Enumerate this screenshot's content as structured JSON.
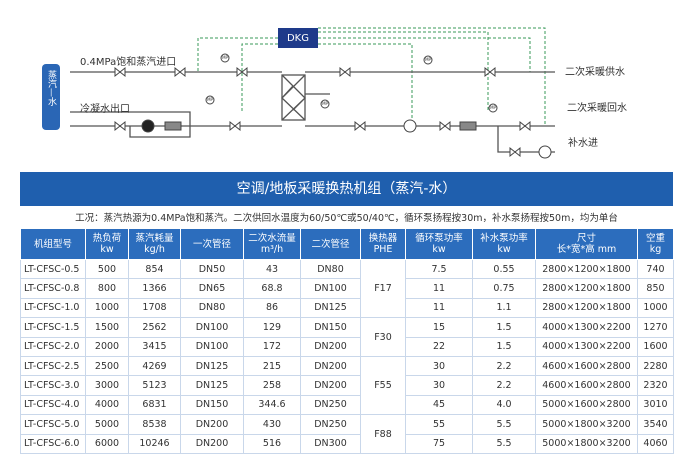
{
  "diagram": {
    "controller": "DKG",
    "steam_inlet": "0.4MPa饱和蒸汽进口",
    "condensate_outlet": "冷凝水出口",
    "side_label": "蒸汽—水",
    "supply": "二次采暖供水",
    "return": "二次采暖回水",
    "makeup": "补水进",
    "gauge_label": "MP"
  },
  "header": {
    "title": "空调/地板采暖换热机组（蒸汽-水）",
    "note": "工况：蒸汽热源为0.4MPa饱和蒸汽。二次供回水温度为60/50℃或50/40℃，循环泵扬程按30m，补水泵扬程按50m，均为单台"
  },
  "table": {
    "columns": [
      [
        "机组型号"
      ],
      [
        "热负荷",
        "kw"
      ],
      [
        "蒸汽耗量",
        "kg/h"
      ],
      [
        "一次管径"
      ],
      [
        "二次水流量",
        "m³/h"
      ],
      [
        "二次管径"
      ],
      [
        "换热器",
        "PHE"
      ],
      [
        "循环泵功率",
        "kw"
      ],
      [
        "补水泵功率",
        "kw"
      ],
      [
        "尺寸",
        "长*宽*高 mm"
      ],
      [
        "空重",
        "kg"
      ]
    ],
    "rows": [
      [
        "LT-CFSC-0.5",
        "500",
        "854",
        "DN50",
        "43",
        "DN80",
        "7.5",
        "0.55",
        "2800×1200×1800",
        "740"
      ],
      [
        "LT-CFSC-0.8",
        "800",
        "1366",
        "DN65",
        "68.8",
        "DN100",
        "11",
        "0.75",
        "2800×1200×1800",
        "850"
      ],
      [
        "LT-CFSC-1.0",
        "1000",
        "1708",
        "DN80",
        "86",
        "DN125",
        "11",
        "1.1",
        "2800×1200×1800",
        "1000"
      ],
      [
        "LT-CFSC-1.5",
        "1500",
        "2562",
        "DN100",
        "129",
        "DN150",
        "15",
        "1.5",
        "4000×1300×2200",
        "1270"
      ],
      [
        "LT-CFSC-2.0",
        "2000",
        "3415",
        "DN100",
        "172",
        "DN200",
        "22",
        "1.5",
        "4000×1300×2200",
        "1600"
      ],
      [
        "LT-CFSC-2.5",
        "2500",
        "4269",
        "DN125",
        "215",
        "DN200",
        "30",
        "2.2",
        "4600×1600×2800",
        "2280"
      ],
      [
        "LT-CFSC-3.0",
        "3000",
        "5123",
        "DN125",
        "258",
        "DN200",
        "30",
        "2.2",
        "4600×1600×2800",
        "2320"
      ],
      [
        "LT-CFSC-4.0",
        "4000",
        "6831",
        "DN150",
        "344.6",
        "DN250",
        "45",
        "4.0",
        "5000×1600×2800",
        "3010"
      ],
      [
        "LT-CFSC-5.0",
        "5000",
        "8538",
        "DN200",
        "430",
        "DN250",
        "55",
        "5.5",
        "5000×1800×3200",
        "3540"
      ],
      [
        "LT-CFSC-6.0",
        "6000",
        "10246",
        "DN200",
        "516",
        "DN300",
        "75",
        "5.5",
        "5000×1800×3200",
        "4060"
      ]
    ],
    "phe_groups": [
      {
        "label": "F17",
        "span": 3
      },
      {
        "label": "F30",
        "span": 2
      },
      {
        "label": "F55",
        "span": 3
      },
      {
        "label": "F88",
        "span": 2
      }
    ]
  }
}
